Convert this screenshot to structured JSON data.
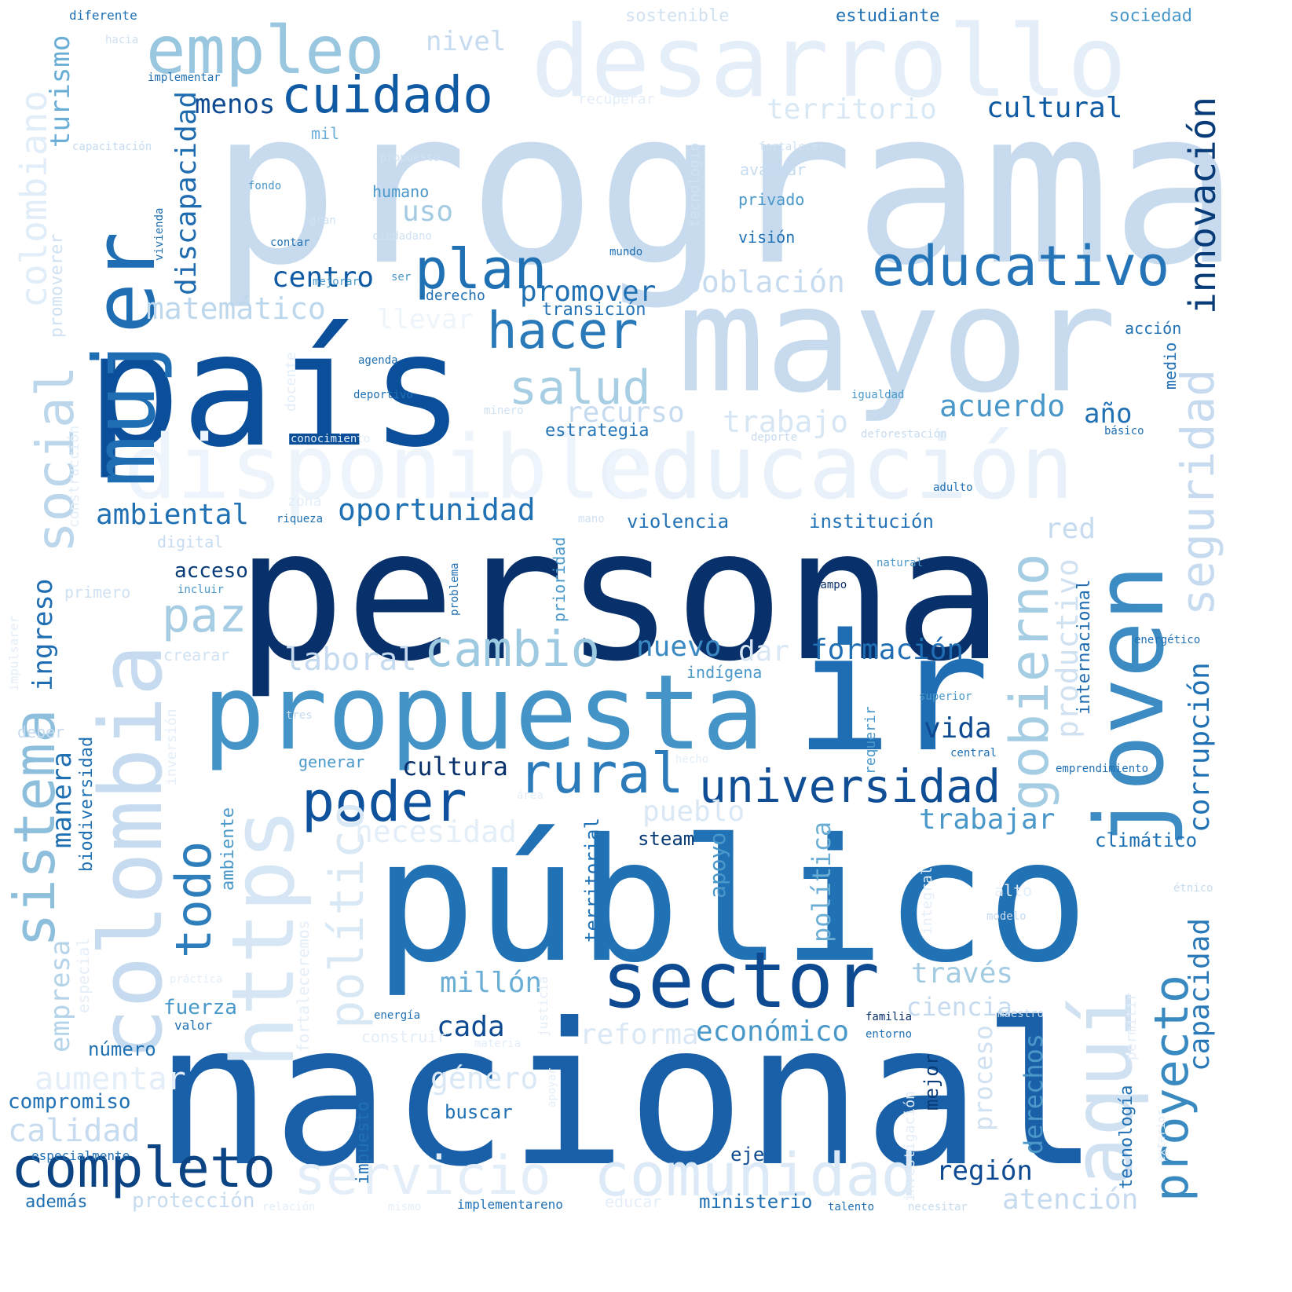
{
  "words": [
    {
      "text": "programa",
      "color": "#c8dbee"
    },
    {
      "text": "persona",
      "color": "#08306b"
    },
    {
      "text": "nacional",
      "color": "#1a60a8"
    },
    {
      "text": "país",
      "color": "#0b4f9a"
    },
    {
      "text": "público",
      "color": "#2171b5"
    },
    {
      "text": "mayor",
      "color": "#c8dbee"
    },
    {
      "text": "propuesta",
      "color": "#4594c8"
    },
    {
      "text": "ir",
      "color": "#1f6db2"
    },
    {
      "text": "colombia",
      "color": "#c6dbef"
    },
    {
      "text": "desarrollo",
      "color": "#e3eef9"
    },
    {
      "text": "educación",
      "color": "#e8f1fa"
    },
    {
      "text": "disponible",
      "color": "#edf4fb"
    },
    {
      "text": "mujer",
      "color": "#1f6eb3"
    },
    {
      "text": "joven",
      "color": "#3c8bc3"
    },
    {
      "text": "https",
      "color": "#d6e6f4"
    },
    {
      "text": "aquí",
      "color": "#d0e1f2"
    },
    {
      "text": "sector",
      "color": "#0d4a92"
    },
    {
      "text": "empleo",
      "color": "#9ac7e0"
    },
    {
      "text": "completo",
      "color": "#0b4383"
    },
    {
      "text": "servicio",
      "color": "#e3eef9"
    },
    {
      "text": "comunidad",
      "color": "#dce9f6"
    },
    {
      "text": "educativo",
      "color": "#2474b7"
    },
    {
      "text": "cuidado",
      "color": "#105aa4"
    },
    {
      "text": "plan",
      "color": "#2070b4"
    },
    {
      "text": "hacer",
      "color": "#2a7ab9"
    },
    {
      "text": "salud",
      "color": "#a8cee4"
    },
    {
      "text": "cambio",
      "color": "#9ecae1"
    },
    {
      "text": "poder",
      "color": "#0e519c"
    },
    {
      "text": "rural",
      "color": "#2b7bba"
    },
    {
      "text": "universidad",
      "color": "#0f4d95"
    },
    {
      "text": "social",
      "color": "#bcd7eb"
    },
    {
      "text": "sistema",
      "color": "#8dbfdd"
    },
    {
      "text": "gobierno",
      "color": "#a5cde3"
    },
    {
      "text": "seguridad",
      "color": "#c6dbef"
    },
    {
      "text": "innovación",
      "color": "#083c79"
    },
    {
      "text": "proyecto",
      "color": "#3a8ac2"
    },
    {
      "text": "capacidad",
      "color": "#2a79b9"
    },
    {
      "text": "paz",
      "color": "#a6cde3"
    },
    {
      "text": "todo",
      "color": "#2e7ebc"
    },
    {
      "text": "político",
      "color": "#d9e8f5"
    },
    {
      "text": "colombiano",
      "color": "#e1edf8"
    },
    {
      "text": "discapacidad",
      "color": "#1f6bb0"
    },
    {
      "text": "turismo",
      "color": "#6aaed6"
    },
    {
      "text": "menos",
      "color": "#0d4a92"
    },
    {
      "text": "nivel",
      "color": "#c6dbef"
    },
    {
      "text": "territorio",
      "color": "#d9e8f5"
    },
    {
      "text": "cultural",
      "color": "#0f5aa3"
    },
    {
      "text": "uso",
      "color": "#a3cbe2"
    },
    {
      "text": "centro",
      "color": "#105aa4"
    },
    {
      "text": "población",
      "color": "#c6dbef"
    },
    {
      "text": "promover",
      "color": "#2070b4"
    },
    {
      "text": "matemático",
      "color": "#bdd7ec"
    },
    {
      "text": "llevar",
      "color": "#edf4fb"
    },
    {
      "text": "transición",
      "color": "#2373b6"
    },
    {
      "text": "recurso",
      "color": "#c6dbef"
    },
    {
      "text": "trabajo",
      "color": "#d6e6f4"
    },
    {
      "text": "acuerdo",
      "color": "#4a98c9"
    },
    {
      "text": "año",
      "color": "#2070b4"
    },
    {
      "text": "estrategia",
      "color": "#2777b8"
    },
    {
      "text": "ambiental",
      "color": "#2070b4"
    },
    {
      "text": "oportunidad",
      "color": "#2070b4"
    },
    {
      "text": "laboral",
      "color": "#c6dbef"
    },
    {
      "text": "nuevo",
      "color": "#3b89c2"
    },
    {
      "text": "dar",
      "color": "#dae8f6"
    },
    {
      "text": "formación",
      "color": "#1f6eb3"
    },
    {
      "text": "ingreso",
      "color": "#1f6eb3"
    },
    {
      "text": "acceso",
      "color": "#083c79"
    },
    {
      "text": "violencia",
      "color": "#2373b6"
    },
    {
      "text": "institución",
      "color": "#2474b7"
    },
    {
      "text": "red",
      "color": "#c6dbef"
    },
    {
      "text": "productivo",
      "color": "#d0e1f2"
    },
    {
      "text": "corrupción",
      "color": "#2070b4"
    },
    {
      "text": "internacional",
      "color": "#1f6bb0"
    },
    {
      "text": "vida",
      "color": "#0d4a92"
    },
    {
      "text": "trabajar",
      "color": "#4a98c9"
    },
    {
      "text": "cultura",
      "color": "#08306b"
    },
    {
      "text": "pueblo",
      "color": "#dae8f6"
    },
    {
      "text": "necesidad",
      "color": "#e3eef9"
    },
    {
      "text": "manera",
      "color": "#2070b4"
    },
    {
      "text": "empresa",
      "color": "#b5d4e9"
    },
    {
      "text": "biodiversidad",
      "color": "#2070b4"
    },
    {
      "text": "ambiente",
      "color": "#4a98c9"
    },
    {
      "text": "apoyo",
      "color": "#4a98c9"
    },
    {
      "text": "política",
      "color": "#6aaed6"
    },
    {
      "text": "territorial",
      "color": "#2070b4"
    },
    {
      "text": "steam",
      "color": "#083c79"
    },
    {
      "text": "climático",
      "color": "#2070b4"
    },
    {
      "text": "millón",
      "color": "#6aaed6"
    },
    {
      "text": "cada",
      "color": "#0d4a92"
    },
    {
      "text": "través",
      "color": "#a3cbe2"
    },
    {
      "text": "ciencia",
      "color": "#c6dbef"
    },
    {
      "text": "reforma",
      "color": "#dae8f6"
    },
    {
      "text": "económico",
      "color": "#4a98c9"
    },
    {
      "text": "fuerza",
      "color": "#4a98c9"
    },
    {
      "text": "número",
      "color": "#2070b4"
    },
    {
      "text": "aumentar",
      "color": "#e3eef9"
    },
    {
      "text": "compromiso",
      "color": "#2070b4"
    },
    {
      "text": "calidad",
      "color": "#c6dbef"
    },
    {
      "text": "género",
      "color": "#dae8f6"
    },
    {
      "text": "buscar",
      "color": "#2070b4"
    },
    {
      "text": "región",
      "color": "#0d4a92"
    },
    {
      "text": "derechos",
      "color": "#4a98c9"
    },
    {
      "text": "proceso",
      "color": "#d0e1f2"
    },
    {
      "text": "atención",
      "color": "#c6dbef"
    },
    {
      "text": "tecnología",
      "color": "#2070b4"
    },
    {
      "text": "mejor",
      "color": "#083c79"
    },
    {
      "text": "impuesto",
      "color": "#2070b4"
    },
    {
      "text": "eje",
      "color": "#0d4a92"
    },
    {
      "text": "ministerio",
      "color": "#2070b4"
    },
    {
      "text": "protección",
      "color": "#c6dbef"
    },
    {
      "text": "además",
      "color": "#2070b4"
    },
    {
      "text": "especialmente",
      "color": "#2070b4"
    },
    {
      "text": "estudiante",
      "color": "#2070b4"
    },
    {
      "text": "sociedad",
      "color": "#4a98c9"
    },
    {
      "text": "sostenible",
      "color": "#d0e1f2"
    },
    {
      "text": "diferente",
      "color": "#2070b4"
    },
    {
      "text": "hacia",
      "color": "#d0e1f2"
    },
    {
      "text": "implementar",
      "color": "#2070b4"
    },
    {
      "text": "recuperar",
      "color": "#e3eef9"
    },
    {
      "text": "mil",
      "color": "#6aaed6"
    },
    {
      "text": "capacitación",
      "color": "#c6dbef"
    },
    {
      "text": "propuesto",
      "color": "#d0e1f2"
    },
    {
      "text": "fortalecer",
      "color": "#d0e1f2"
    },
    {
      "text": "avanzar",
      "color": "#c6dbef"
    },
    {
      "text": "tecnologío",
      "color": "#d0e1f2"
    },
    {
      "text": "fondo",
      "color": "#4a98c9"
    },
    {
      "text": "humano",
      "color": "#4a98c9"
    },
    {
      "text": "privado",
      "color": "#4a98c9"
    },
    {
      "text": "gran",
      "color": "#d0e1f2"
    },
    {
      "text": "ciudadano",
      "color": "#d0e1f2"
    },
    {
      "text": "visión",
      "color": "#2070b4"
    },
    {
      "text": "contar",
      "color": "#2070b4"
    },
    {
      "text": "mundo",
      "color": "#2070b4"
    },
    {
      "text": "vivienda",
      "color": "#2070b4"
    },
    {
      "text": "promoverer",
      "color": "#d0e1f2"
    },
    {
      "text": "mejorar",
      "color": "#4a98c9"
    },
    {
      "text": "ser",
      "color": "#4a98c9"
    },
    {
      "text": "derecho",
      "color": "#2070b4"
    },
    {
      "text": "acción",
      "color": "#2070b4"
    },
    {
      "text": "agenda",
      "color": "#2070b4"
    },
    {
      "text": "docente",
      "color": "#e3eef9"
    },
    {
      "text": "deportivo",
      "color": "#2070b4"
    },
    {
      "text": "minero",
      "color": "#d0e1f2"
    },
    {
      "text": "igualdad",
      "color": "#4a98c9"
    },
    {
      "text": "medio",
      "color": "#2070b4"
    },
    {
      "text": "básico",
      "color": "#2070b4"
    },
    {
      "text": "deporte",
      "color": "#c6dbef"
    },
    {
      "text": "deforestación",
      "color": "#c6dbef"
    },
    {
      "text": "conocimiento",
      "color": "#e3eef9"
    },
    {
      "text": "construcción",
      "color": "#e3eef9"
    },
    {
      "text": "zona",
      "color": "#e3eef9"
    },
    {
      "text": "riqueza",
      "color": "#2070b4"
    },
    {
      "text": "mano",
      "color": "#d0e1f2"
    },
    {
      "text": "adulto",
      "color": "#2070b4"
    },
    {
      "text": "digital",
      "color": "#c6dbef"
    },
    {
      "text": "incluir",
      "color": "#4a98c9"
    },
    {
      "text": "primero",
      "color": "#d0e1f2"
    },
    {
      "text": "impulsarer",
      "color": "#e3eef9"
    },
    {
      "text": "problema",
      "color": "#2070b4"
    },
    {
      "text": "prioridad",
      "color": "#4a98c9"
    },
    {
      "text": "natural",
      "color": "#4a98c9"
    },
    {
      "text": "campo",
      "color": "#08306b"
    },
    {
      "text": "crearar",
      "color": "#d0e1f2"
    },
    {
      "text": "indígena",
      "color": "#4a98c9"
    },
    {
      "text": "energético",
      "color": "#2070b4"
    },
    {
      "text": "inversión",
      "color": "#e3eef9"
    },
    {
      "text": "superior",
      "color": "#4a98c9"
    },
    {
      "text": "tres",
      "color": "#c6dbef"
    },
    {
      "text": "deber",
      "color": "#c6dbef"
    },
    {
      "text": "requerir",
      "color": "#4a98c9"
    },
    {
      "text": "generar",
      "color": "#4a98c9"
    },
    {
      "text": "central",
      "color": "#2070b4"
    },
    {
      "text": "emprendimiento",
      "color": "#2070b4"
    },
    {
      "text": "área",
      "color": "#e3eef9"
    },
    {
      "text": "fortaleceremos",
      "color": "#e3eef9"
    },
    {
      "text": "especial",
      "color": "#e3eef9"
    },
    {
      "text": "práctica",
      "color": "#e3eef9"
    },
    {
      "text": "integral",
      "color": "#e3eef9"
    },
    {
      "text": "alto",
      "color": "#e3eef9"
    },
    {
      "text": "modelo",
      "color": "#c6dbef"
    },
    {
      "text": "étnico",
      "color": "#c6dbef"
    },
    {
      "text": "justicia",
      "color": "#e3eef9"
    },
    {
      "text": "energía",
      "color": "#2070b4"
    },
    {
      "text": "familia",
      "color": "#08306b"
    },
    {
      "text": "entorno",
      "color": "#2070b4"
    },
    {
      "text": "maestro",
      "color": "#c6dbef"
    },
    {
      "text": "permitir",
      "color": "#e3eef9"
    },
    {
      "text": "construir",
      "color": "#e3eef9"
    },
    {
      "text": "materia",
      "color": "#e3eef9"
    },
    {
      "text": "valor",
      "color": "#2070b4"
    },
    {
      "text": "apoyar",
      "color": "#e3eef9"
    },
    {
      "text": "investigación",
      "color": "#e3eef9"
    },
    {
      "text": "exterior",
      "color": "#e3eef9"
    },
    {
      "text": "relación",
      "color": "#e3eef9"
    },
    {
      "text": "mismo",
      "color": "#e3eef9"
    },
    {
      "text": "implementareno",
      "color": "#2070b4"
    },
    {
      "text": "educar",
      "color": "#e3eef9"
    },
    {
      "text": "talento",
      "color": "#2070b4"
    },
    {
      "text": "necesitar",
      "color": "#c6dbef"
    },
    {
      "text": "hecho",
      "color": "#e3eef9"
    }
  ]
}
